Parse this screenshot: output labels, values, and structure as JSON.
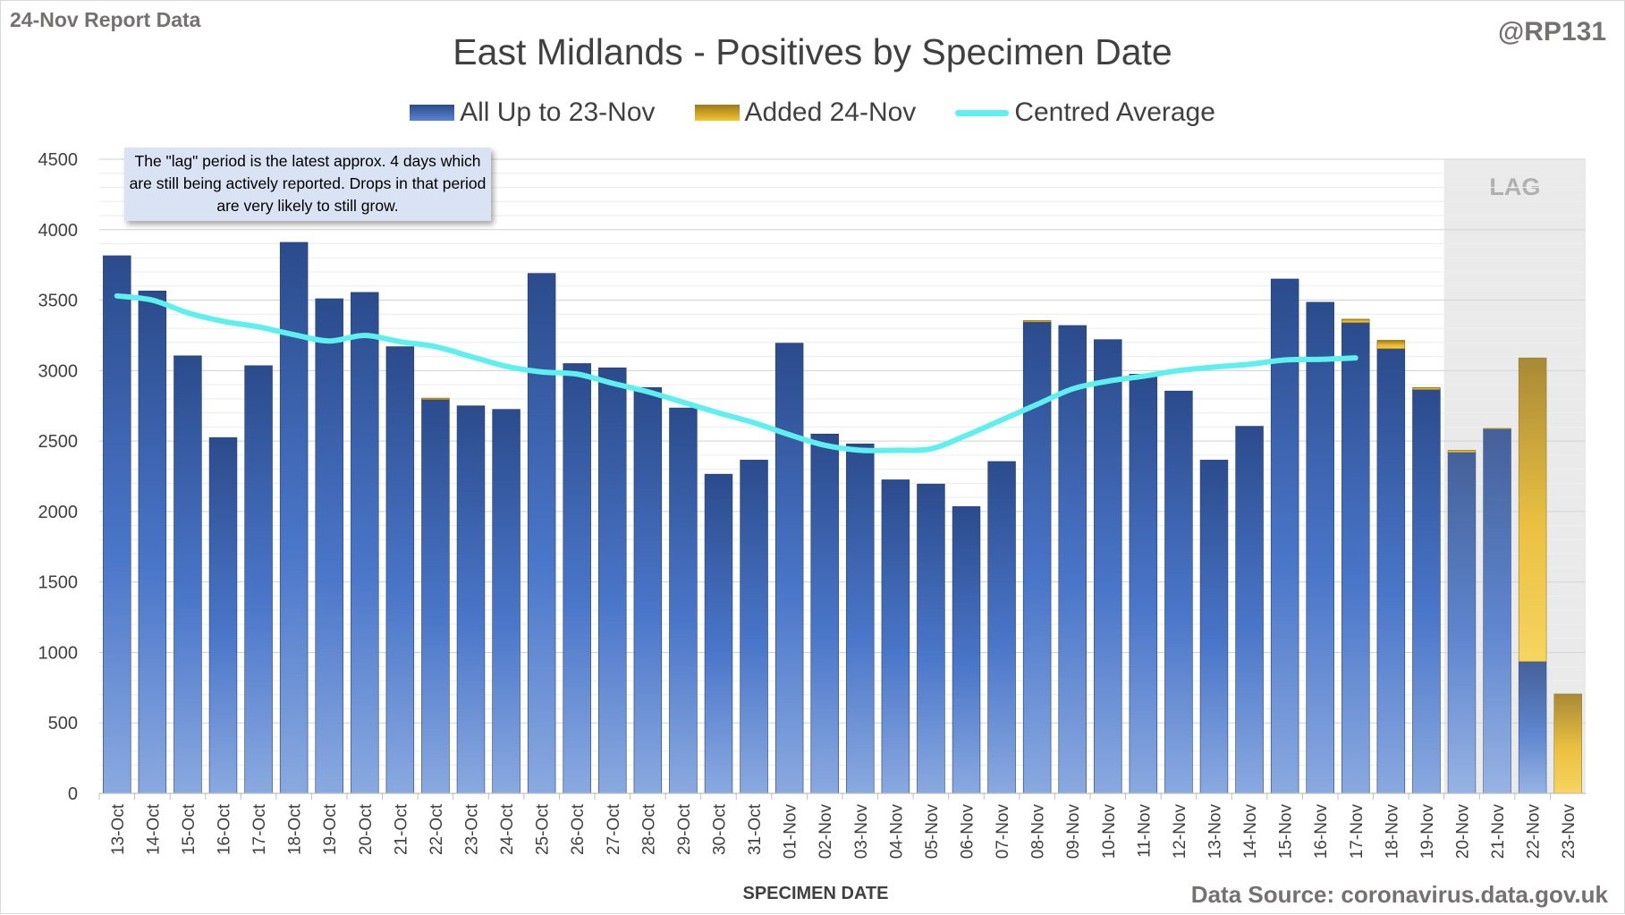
{
  "header": {
    "report_label": "24-Nov Report Data",
    "author": "@RP131",
    "title": "East Midlands - Positives by Specimen Date"
  },
  "legend": {
    "base_label": "All Up to 23-Nov",
    "added_label": "Added 24-Nov",
    "average_label": "Centred Average"
  },
  "note": {
    "text": "The \"lag\" period is the latest approx. 4 days which are still being actively reported. Drops in that period are very likely to still grow."
  },
  "footer": {
    "source": "Data Source: coronavirus.data.gov.uk"
  },
  "colors": {
    "base_dark": "#2b4b8c",
    "base_light": "#7f9fdb",
    "added_dark": "#9c7a1a",
    "added_light": "#f4c430",
    "average": "#5ef0ef",
    "lag_shade": "#e7e7e7",
    "grid": "#d9d9d9"
  },
  "chart_data": {
    "type": "bar",
    "stacked": true,
    "xlabel": "SPECIMEN DATE",
    "ylabel": "",
    "ylim": [
      0,
      4500
    ],
    "yticks": [
      0,
      500,
      1000,
      1500,
      2000,
      2500,
      3000,
      3500,
      4000,
      4500
    ],
    "grid": true,
    "legend_position": "top-center",
    "lag_label": "LAG",
    "lag_categories": [
      "20-Nov",
      "21-Nov",
      "22-Nov",
      "23-Nov"
    ],
    "categories": [
      "13-Oct",
      "14-Oct",
      "15-Oct",
      "16-Oct",
      "17-Oct",
      "18-Oct",
      "19-Oct",
      "20-Oct",
      "21-Oct",
      "22-Oct",
      "23-Oct",
      "24-Oct",
      "25-Oct",
      "26-Oct",
      "27-Oct",
      "28-Oct",
      "29-Oct",
      "30-Oct",
      "31-Oct",
      "01-Nov",
      "02-Nov",
      "03-Nov",
      "04-Nov",
      "05-Nov",
      "06-Nov",
      "07-Nov",
      "08-Nov",
      "09-Nov",
      "10-Nov",
      "11-Nov",
      "12-Nov",
      "13-Nov",
      "14-Nov",
      "15-Nov",
      "16-Nov",
      "17-Nov",
      "18-Nov",
      "19-Nov",
      "20-Nov",
      "21-Nov",
      "22-Nov",
      "23-Nov"
    ],
    "series": [
      {
        "name": "All Up to 23-Nov",
        "values": [
          3815,
          3565,
          3105,
          2525,
          3035,
          3910,
          3510,
          3555,
          3170,
          2795,
          2750,
          2725,
          3690,
          3050,
          3020,
          2880,
          2735,
          2265,
          2365,
          3195,
          2550,
          2480,
          2225,
          2195,
          2035,
          2355,
          3345,
          3320,
          3220,
          2975,
          2855,
          2365,
          2605,
          3650,
          3485,
          3340,
          3155,
          2865,
          2420,
          2585,
          935,
          0
        ]
      },
      {
        "name": "Added 24-Nov",
        "values": [
          0,
          0,
          0,
          0,
          0,
          0,
          0,
          0,
          0,
          10,
          0,
          0,
          0,
          0,
          0,
          0,
          0,
          0,
          0,
          0,
          0,
          0,
          0,
          0,
          0,
          0,
          10,
          0,
          0,
          0,
          0,
          0,
          0,
          0,
          0,
          25,
          60,
          15,
          15,
          5,
          2155,
          705
        ]
      },
      {
        "name": "Centred Average",
        "type": "line",
        "values": [
          3530,
          3500,
          3410,
          3350,
          3310,
          3255,
          3210,
          3250,
          3205,
          3170,
          3100,
          3030,
          2990,
          2975,
          2910,
          2850,
          2775,
          2700,
          2630,
          2545,
          2470,
          2435,
          2435,
          2445,
          2540,
          2650,
          2760,
          2870,
          2925,
          2960,
          3000,
          3025,
          3045,
          3075,
          3080,
          3090,
          null,
          null,
          null,
          null,
          null,
          null
        ]
      }
    ]
  }
}
